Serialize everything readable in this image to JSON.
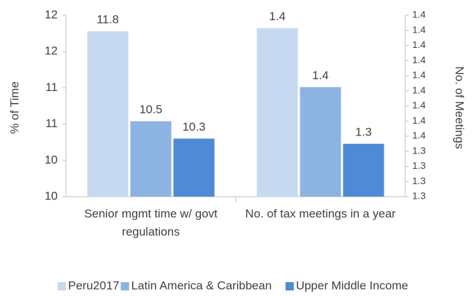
{
  "chart_data": {
    "type": "bar",
    "categories": [
      "Senior mgmt time w/ govt regulations",
      "No. of tax meetings in a year"
    ],
    "category_axes": [
      "y",
      "y2"
    ],
    "ylabel": "% of Time",
    "y2label": "No. of Meetings",
    "ylim": [
      9.5,
      12
    ],
    "yticks": [
      {
        "value": 9.5,
        "label": "10"
      },
      10,
      {
        "value": 10.5,
        "label": "11"
      },
      11,
      {
        "value": 11.5,
        "label": "12"
      },
      12
    ],
    "y2lim": [
      1.342,
      1.366
    ],
    "y2ticks": [
      {
        "value": 1.342,
        "label": "1.3"
      },
      {
        "value": 1.344,
        "label": "1.3"
      },
      {
        "value": 1.346,
        "label": "1.3"
      },
      {
        "value": 1.348,
        "label": "1.3"
      },
      {
        "value": 1.35,
        "label": "1.4"
      },
      {
        "value": 1.352,
        "label": "1.4"
      },
      {
        "value": 1.354,
        "label": "1.4"
      },
      {
        "value": 1.356,
        "label": "1.4"
      },
      {
        "value": 1.358,
        "label": "1.4"
      },
      {
        "value": 1.36,
        "label": "1.4"
      },
      {
        "value": 1.362,
        "label": "1.4"
      },
      {
        "value": 1.364,
        "label": "1.4"
      },
      {
        "value": 1.366,
        "label": "1.4"
      }
    ],
    "series": [
      {
        "name": "Peru2017",
        "color": "#c6d9f1",
        "values": [
          11.78,
          1.3643
        ],
        "value_labels": [
          "11.8",
          "1.4"
        ]
      },
      {
        "name": "Latin America & Caribbean",
        "color": "#8db3e2",
        "values": [
          10.54,
          1.3565
        ],
        "value_labels": [
          "10.5",
          "1.4"
        ]
      },
      {
        "name": "Upper Middle Income",
        "color": "#4f8ad6",
        "values": [
          10.3,
          1.349
        ],
        "value_labels": [
          "10.3",
          "1.3"
        ]
      }
    ],
    "legend": "bottom"
  }
}
